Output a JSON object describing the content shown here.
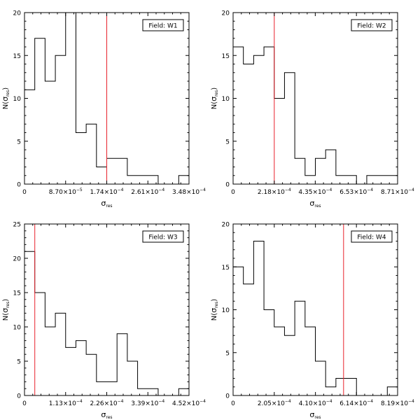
{
  "chart_data": [
    {
      "type": "histogram",
      "legend": "Field: W1",
      "xlabel": "σ",
      "xlabel_sub": "res",
      "ylabel_main": "N(",
      "ylabel_sigma": "σ",
      "ylabel_sub": "res",
      "ylabel_close": ")",
      "xlim": [
        0,
        0.000348
      ],
      "ylim": [
        0,
        20
      ],
      "xticks": [
        0,
        8.7e-05,
        0.000174,
        0.000261,
        0.000348
      ],
      "xtick_labels": [
        {
          "m": "0",
          "e": ""
        },
        {
          "m": "8.70×10",
          "e": "−5"
        },
        {
          "m": "1.74×10",
          "e": "−4"
        },
        {
          "m": "2.61×10",
          "e": "−4"
        },
        {
          "m": "3.48×10",
          "e": "−4"
        }
      ],
      "yticks": [
        0,
        5,
        10,
        15,
        20
      ],
      "ytick_labels": [
        "0",
        "5",
        "10",
        "15",
        "20"
      ],
      "counts": [
        11,
        17,
        12,
        15,
        20,
        6,
        7,
        2,
        3,
        3,
        1,
        1,
        1,
        0,
        0,
        1
      ],
      "threshold": 0.000174,
      "threshold_color": "#e8212b",
      "line_color": "#000000"
    },
    {
      "type": "histogram",
      "legend": "Field: W2",
      "xlabel": "σ",
      "xlabel_sub": "res",
      "ylabel_main": "N(",
      "ylabel_sigma": "σ",
      "ylabel_sub": "res",
      "ylabel_close": ")",
      "xlim": [
        0,
        0.000871
      ],
      "ylim": [
        0,
        20
      ],
      "xticks": [
        0,
        0.000218,
        0.000435,
        0.000653,
        0.000871
      ],
      "xtick_labels": [
        {
          "m": "0",
          "e": ""
        },
        {
          "m": "2.18×10",
          "e": "−4"
        },
        {
          "m": "4.35×10",
          "e": "−4"
        },
        {
          "m": "6.53×10",
          "e": "−4"
        },
        {
          "m": "8.71×10",
          "e": "−4"
        }
      ],
      "yticks": [
        0,
        5,
        10,
        15,
        20
      ],
      "ytick_labels": [
        "0",
        "5",
        "10",
        "15",
        "20"
      ],
      "counts": [
        16,
        14,
        15,
        16,
        10,
        13,
        3,
        1,
        3,
        4,
        1,
        1,
        0,
        1,
        1,
        1
      ],
      "threshold": 0.000218,
      "threshold_color": "#e8212b",
      "line_color": "#000000"
    },
    {
      "type": "histogram",
      "legend": "Field: W3",
      "xlabel": "σ",
      "xlabel_sub": "res",
      "ylabel_main": "N(",
      "ylabel_sigma": "σ",
      "ylabel_sub": "res",
      "ylabel_close": ")",
      "xlim": [
        0,
        0.000452
      ],
      "ylim": [
        0,
        25
      ],
      "xticks": [
        0,
        0.000113,
        0.000226,
        0.000339,
        0.000452
      ],
      "xtick_labels": [
        {
          "m": "0",
          "e": ""
        },
        {
          "m": "1.13×10",
          "e": "−4"
        },
        {
          "m": "2.26×10",
          "e": "−4"
        },
        {
          "m": "3.39×10",
          "e": "−4"
        },
        {
          "m": "4.52×10",
          "e": "−4"
        }
      ],
      "yticks": [
        0,
        5,
        10,
        15,
        20,
        25
      ],
      "ytick_labels": [
        "0",
        "5",
        "10",
        "15",
        "20",
        "25"
      ],
      "counts": [
        21,
        15,
        10,
        12,
        7,
        8,
        6,
        2,
        2,
        9,
        5,
        1,
        1,
        0,
        0,
        1
      ],
      "threshold": 2.83e-05,
      "threshold_color": "#e8212b",
      "line_color": "#000000"
    },
    {
      "type": "histogram",
      "legend": "Field: W4",
      "xlabel": "σ",
      "xlabel_sub": "res",
      "ylabel_main": "N(",
      "ylabel_sigma": "σ",
      "ylabel_sub": "res",
      "ylabel_close": ")",
      "xlim": [
        0,
        0.000819
      ],
      "ylim": [
        0,
        20
      ],
      "xticks": [
        0,
        0.000205,
        0.00041,
        0.000614,
        0.000819
      ],
      "xtick_labels": [
        {
          "m": "0",
          "e": ""
        },
        {
          "m": "2.05×10",
          "e": "−4"
        },
        {
          "m": "4.10×10",
          "e": "−4"
        },
        {
          "m": "6.14×10",
          "e": "−4"
        },
        {
          "m": "8.19×10",
          "e": "−4"
        }
      ],
      "yticks": [
        0,
        5,
        10,
        15,
        20
      ],
      "ytick_labels": [
        "0",
        "5",
        "10",
        "15",
        "20"
      ],
      "counts": [
        15,
        13,
        18,
        10,
        8,
        7,
        11,
        8,
        4,
        1,
        2,
        2,
        0,
        0,
        0,
        1
      ],
      "threshold": 0.00055,
      "threshold_color": "#e8212b",
      "line_color": "#000000"
    }
  ]
}
